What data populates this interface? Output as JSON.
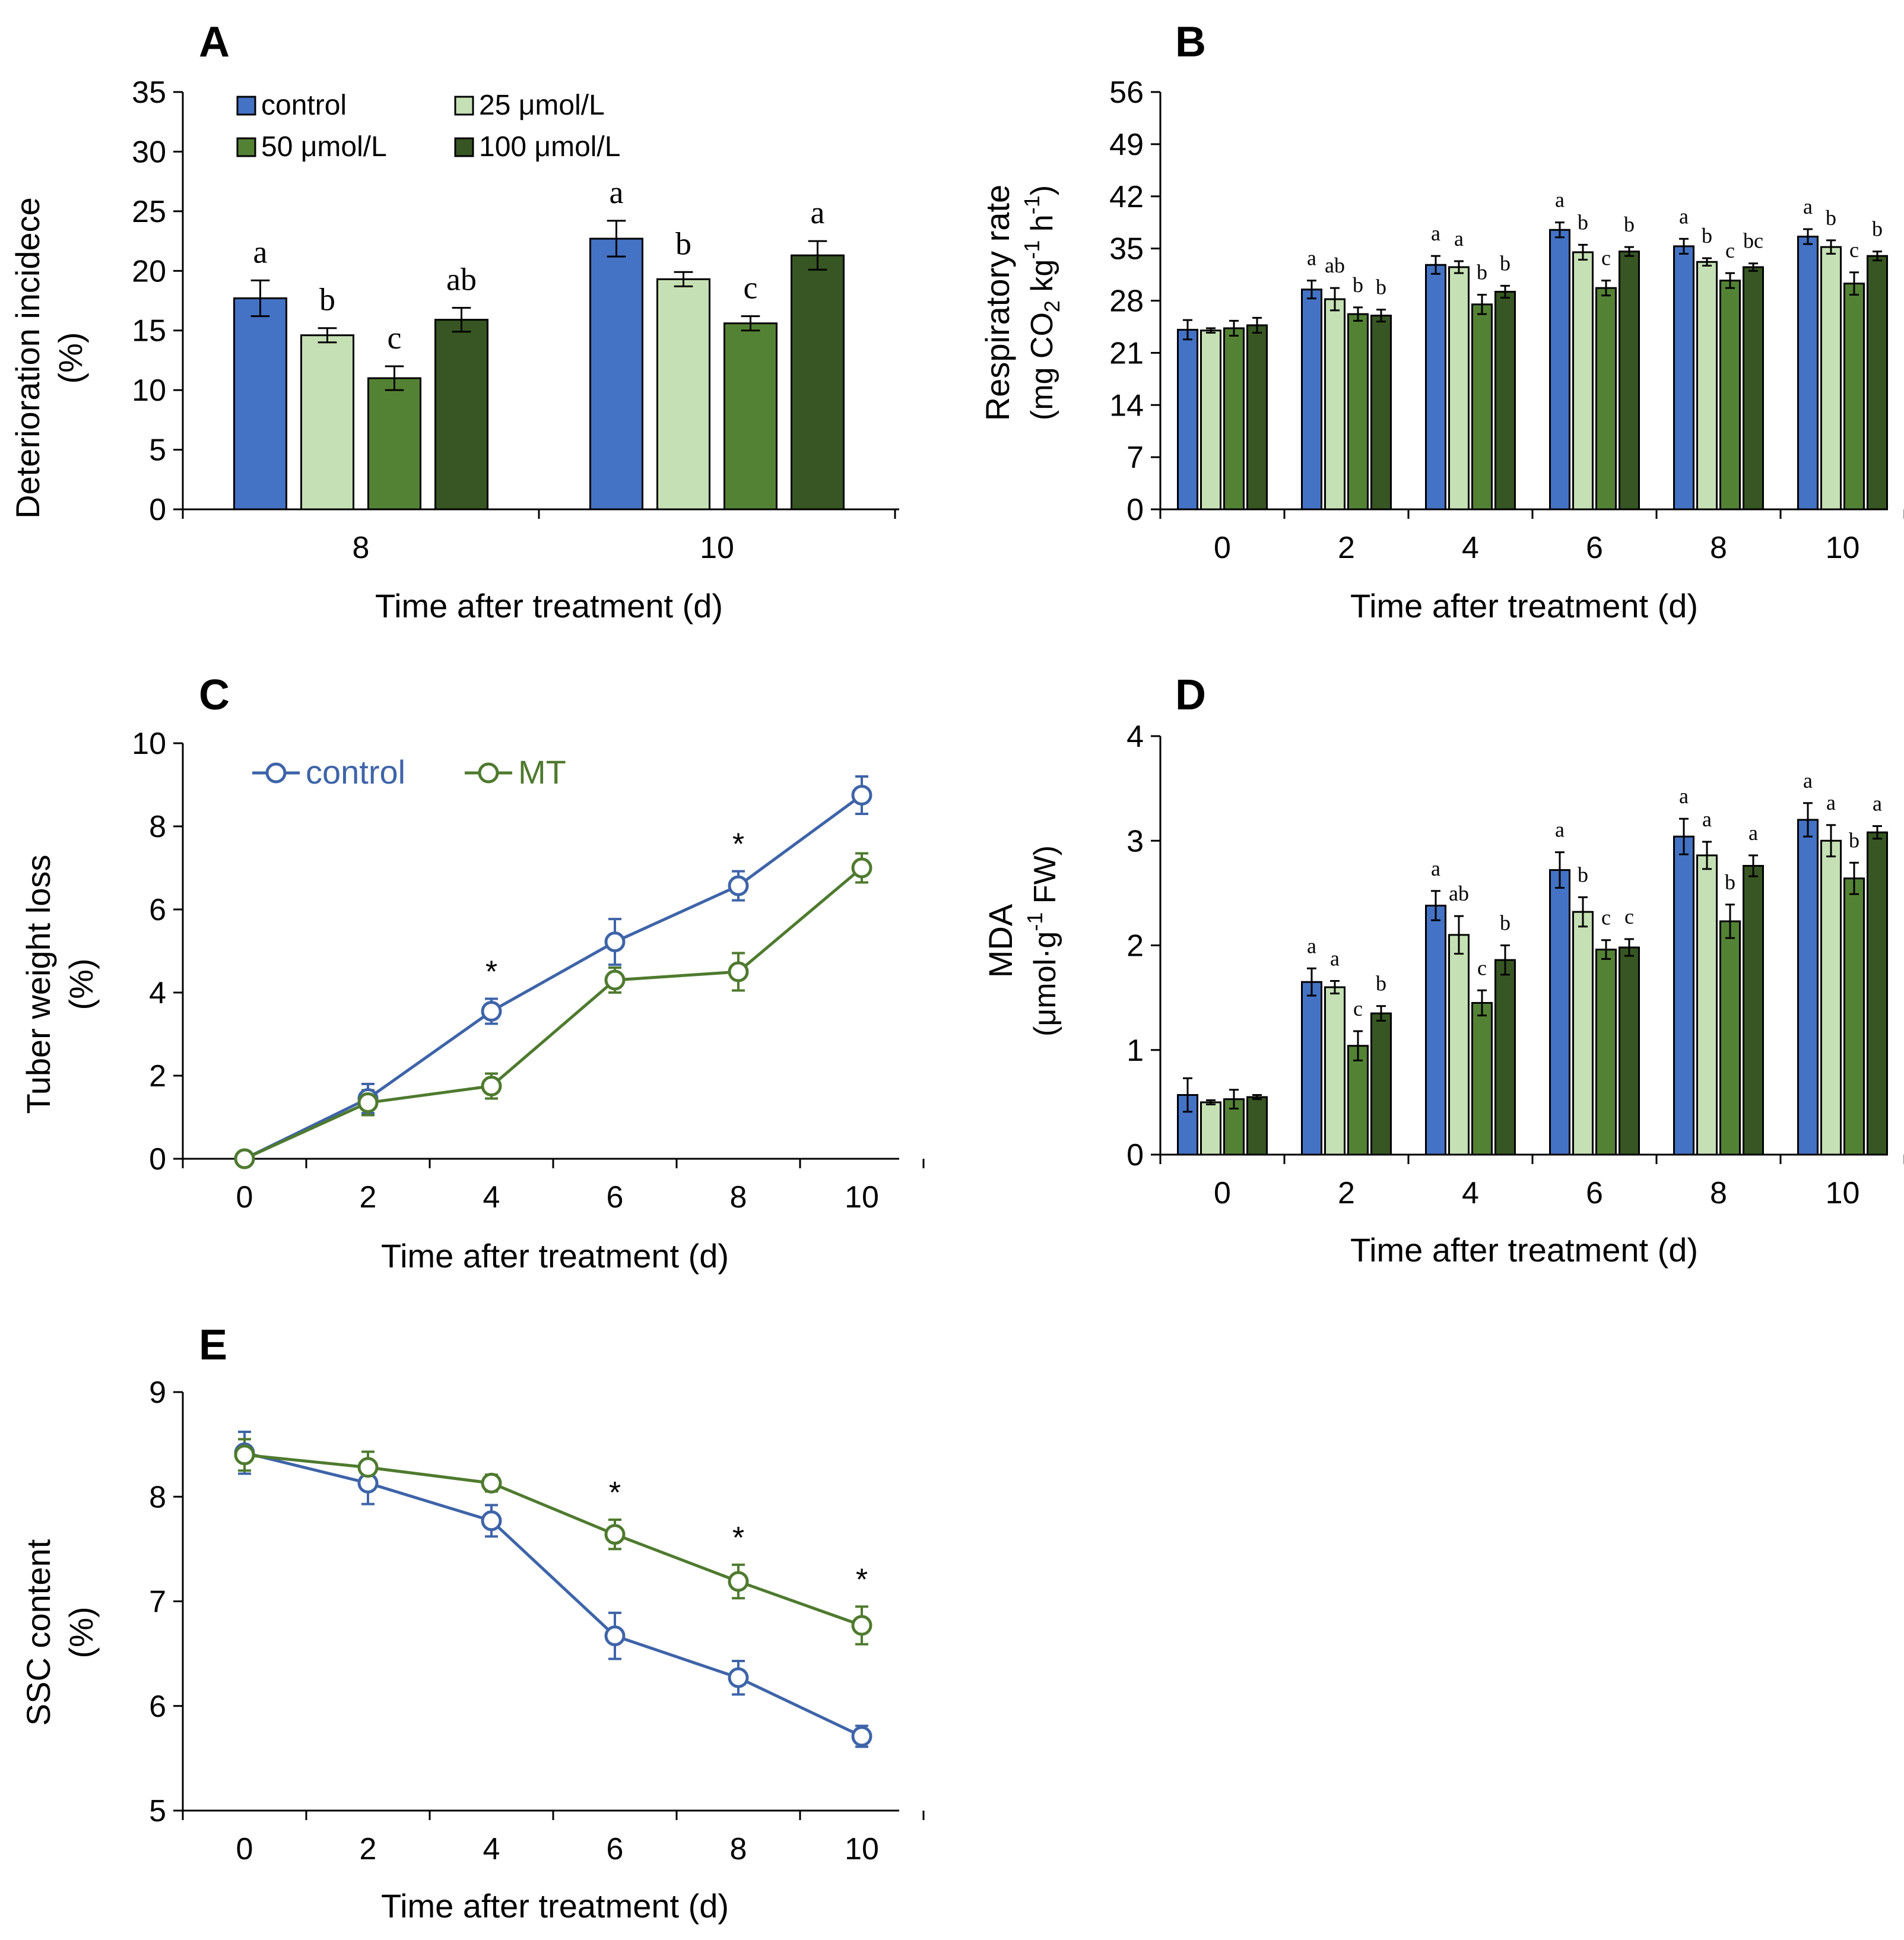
{
  "colors": {
    "control": "#4472C4",
    "c25": "#C5E0B4",
    "c50": "#548235",
    "c100": "#375623",
    "lineControl": "#3E64A8",
    "lineMT": "#4E7A2E",
    "axis": "#000000"
  },
  "chart_data": [
    {
      "panel": "A",
      "type": "bar",
      "xlabel": "Time after treatment (d)",
      "ylabel": [
        "Deterioration incidece",
        "(%)"
      ],
      "ylim": [
        0,
        35
      ],
      "yticks": [
        "0",
        "5",
        "10",
        "15",
        "20",
        "25",
        "30",
        "35"
      ],
      "categories": [
        "8",
        "10"
      ],
      "legend_position": "top-left",
      "series": [
        {
          "name": "control",
          "color_key": "control",
          "values": [
            17.7,
            22.7
          ],
          "errors": [
            1.5,
            1.5
          ],
          "labels": [
            "a",
            "a"
          ]
        },
        {
          "name": "25 μmol/L",
          "color_key": "c25",
          "values": [
            14.6,
            19.3
          ],
          "errors": [
            0.6,
            0.6
          ],
          "labels": [
            "b",
            "b"
          ]
        },
        {
          "name": "50 μmol/L",
          "color_key": "c50",
          "values": [
            11.0,
            15.6
          ],
          "errors": [
            1.0,
            0.6
          ],
          "labels": [
            "c",
            "c"
          ]
        },
        {
          "name": "100 μmol/L",
          "color_key": "c100",
          "values": [
            15.9,
            21.3
          ],
          "errors": [
            1.0,
            1.2
          ],
          "labels": [
            "ab",
            "a"
          ]
        }
      ]
    },
    {
      "panel": "B",
      "type": "bar",
      "xlabel": "Time after treatment (d)",
      "ylabel_line1": "Respiratory rate",
      "ylabel_line2": {
        "pre": "(mg CO",
        "sub": "2",
        "mid": " kg",
        "sup1": "-1",
        "mid2": " h",
        "sup2": "-1",
        "post": ")"
      },
      "ylim": [
        0,
        56
      ],
      "yticks": [
        "0",
        "7",
        "14",
        "21",
        "28",
        "35",
        "42",
        "49",
        "56"
      ],
      "categories": [
        "0",
        "2",
        "4",
        "6",
        "8",
        "10"
      ],
      "series": [
        {
          "name": "control",
          "color_key": "control",
          "values": [
            24.1,
            29.5,
            32.8,
            37.5,
            35.3,
            36.6
          ],
          "errors": [
            1.3,
            1.2,
            1.2,
            1.0,
            1.0,
            1.0
          ],
          "labels": [
            "",
            "a",
            "a",
            "a",
            "a",
            "a"
          ]
        },
        {
          "name": "25 μmol/L",
          "color_key": "c25",
          "values": [
            24.0,
            28.2,
            32.5,
            34.5,
            33.2,
            35.2
          ],
          "errors": [
            0.3,
            1.5,
            0.8,
            1.0,
            0.5,
            0.9
          ],
          "labels": [
            "",
            "ab",
            "a",
            "b",
            "b",
            "b"
          ]
        },
        {
          "name": "50 μmol/L",
          "color_key": "c50",
          "values": [
            24.3,
            26.2,
            27.5,
            29.7,
            30.7,
            30.3
          ],
          "errors": [
            1.0,
            0.9,
            1.3,
            1.0,
            1.0,
            1.5
          ],
          "labels": [
            "",
            "b",
            "b",
            "c",
            "c",
            "c"
          ]
        },
        {
          "name": "100 μmol/L",
          "color_key": "c100",
          "values": [
            24.7,
            26.0,
            29.2,
            34.6,
            32.5,
            34.0
          ],
          "errors": [
            1.0,
            0.8,
            0.8,
            0.6,
            0.5,
            0.6
          ],
          "labels": [
            "",
            "b",
            "b",
            "b",
            "bc",
            "b"
          ]
        }
      ]
    },
    {
      "panel": "C",
      "type": "line",
      "xlabel": "Time after treatment (d)",
      "ylabel": [
        "Tuber weight loss",
        "(%)"
      ],
      "ylim": [
        0,
        10
      ],
      "yticks": [
        "0",
        "2",
        "4",
        "6",
        "8",
        "10"
      ],
      "x": [
        0,
        2,
        4,
        6,
        8,
        10
      ],
      "xticks": [
        "0",
        "2",
        "4",
        "6",
        "8",
        "10"
      ],
      "legend_position": "top-left",
      "series": [
        {
          "name": "control",
          "color_key": "lineControl",
          "values": [
            0,
            1.45,
            3.55,
            5.22,
            6.57,
            8.75
          ],
          "errors": [
            0,
            0.35,
            0.3,
            0.55,
            0.35,
            0.45
          ]
        },
        {
          "name": "MT",
          "color_key": "lineMT",
          "values": [
            0,
            1.35,
            1.75,
            4.3,
            4.5,
            7.0
          ],
          "errors": [
            0,
            0.3,
            0.3,
            0.3,
            0.45,
            0.35
          ]
        }
      ],
      "star_label": "*",
      "stars_at": [
        4,
        8
      ]
    },
    {
      "panel": "D",
      "type": "bar",
      "xlabel": "Time after treatment (d)",
      "ylabel_line1": "MDA",
      "ylabel_line2": {
        "pre": "(μmol·g",
        "sup": "-1",
        "post": " FW)"
      },
      "ylim": [
        0,
        4
      ],
      "yticks": [
        "0",
        "1",
        "2",
        "3",
        "4"
      ],
      "categories": [
        "0",
        "2",
        "4",
        "6",
        "8",
        "10"
      ],
      "series": [
        {
          "name": "control",
          "color_key": "control",
          "values": [
            0.57,
            1.65,
            2.38,
            2.72,
            3.04,
            3.2
          ],
          "errors": [
            0.16,
            0.13,
            0.14,
            0.17,
            0.17,
            0.16
          ]
        },
        {
          "name": "25 μmol/L",
          "color_key": "c25",
          "values": [
            0.5,
            1.6,
            2.1,
            2.32,
            2.86,
            3.0
          ],
          "errors": [
            0.02,
            0.06,
            0.18,
            0.14,
            0.13,
            0.15
          ]
        },
        {
          "name": "50 μmol/L",
          "color_key": "c50",
          "values": [
            0.53,
            1.04,
            1.45,
            1.96,
            2.23,
            2.64
          ],
          "errors": [
            0.09,
            0.14,
            0.12,
            0.09,
            0.16,
            0.15
          ]
        },
        {
          "name": "100 μmol/L",
          "color_key": "c100",
          "values": [
            0.55,
            1.35,
            1.86,
            1.98,
            2.76,
            3.08
          ],
          "errors": [
            0.02,
            0.07,
            0.14,
            0.08,
            0.1,
            0.06
          ]
        }
      ],
      "letters": [
        [
          "",
          "",
          "",
          ""
        ],
        [
          "a",
          "a",
          "c",
          "b"
        ],
        [
          "a",
          "ab",
          "c",
          "b"
        ],
        [
          "a",
          "b",
          "c",
          "c"
        ],
        [
          "a",
          "a",
          "b",
          "a"
        ],
        [
          "a",
          "a",
          "b",
          "a"
        ]
      ]
    },
    {
      "panel": "E",
      "type": "line",
      "xlabel": "Time after treatment (d)",
      "ylabel": [
        "SSC content",
        "(%)"
      ],
      "ylim": [
        5,
        9
      ],
      "yticks": [
        "5",
        "6",
        "7",
        "8",
        "9"
      ],
      "x": [
        0,
        2,
        4,
        6,
        8,
        10
      ],
      "xticks": [
        "0",
        "2",
        "4",
        "6",
        "8",
        "10"
      ],
      "series": [
        {
          "name": "control",
          "color_key": "lineControl",
          "values": [
            8.42,
            8.13,
            7.77,
            6.67,
            6.27,
            5.71
          ],
          "errors": [
            0.2,
            0.2,
            0.15,
            0.22,
            0.16,
            0.1
          ]
        },
        {
          "name": "MT",
          "color_key": "lineMT",
          "values": [
            8.4,
            8.28,
            8.13,
            7.64,
            7.19,
            6.77
          ],
          "errors": [
            0.15,
            0.15,
            0.08,
            0.14,
            0.16,
            0.18
          ]
        }
      ],
      "star_label": "*",
      "stars_at": [
        6,
        8,
        10
      ]
    }
  ]
}
